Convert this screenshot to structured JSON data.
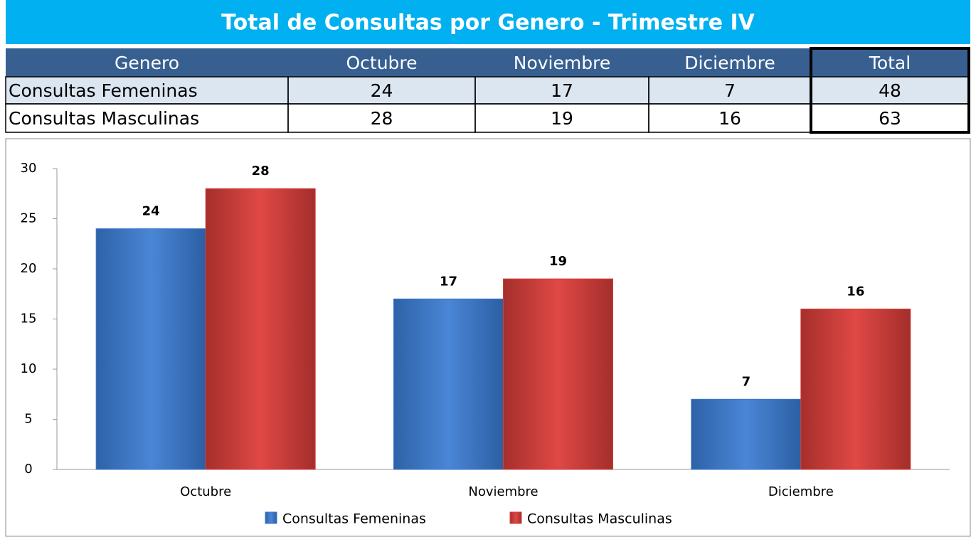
{
  "table": {
    "title": "Total de Consultas por Genero - Trimestre IV",
    "header": [
      "Genero",
      "Octubre",
      "Noviembre",
      "Diciembre",
      "Total"
    ],
    "rows": [
      [
        "Consultas Femeninas",
        24,
        17,
        7,
        48
      ],
      [
        "Consultas Masculinas",
        28,
        19,
        16,
        63
      ]
    ]
  },
  "chart_data": {
    "type": "bar",
    "categories": [
      "Octubre",
      "Noviembre",
      "Diciembre"
    ],
    "series": [
      {
        "name": "Consultas Femeninas",
        "color": "#3a78c9",
        "values": [
          24,
          17,
          7
        ]
      },
      {
        "name": "Consultas Masculinas",
        "color": "#d43f3c",
        "values": [
          28,
          19,
          16
        ]
      }
    ],
    "ylim": [
      0,
      30
    ],
    "yticks": [
      0,
      5,
      10,
      15,
      20,
      25,
      30
    ],
    "legend": "bottom",
    "data_labels": true
  }
}
